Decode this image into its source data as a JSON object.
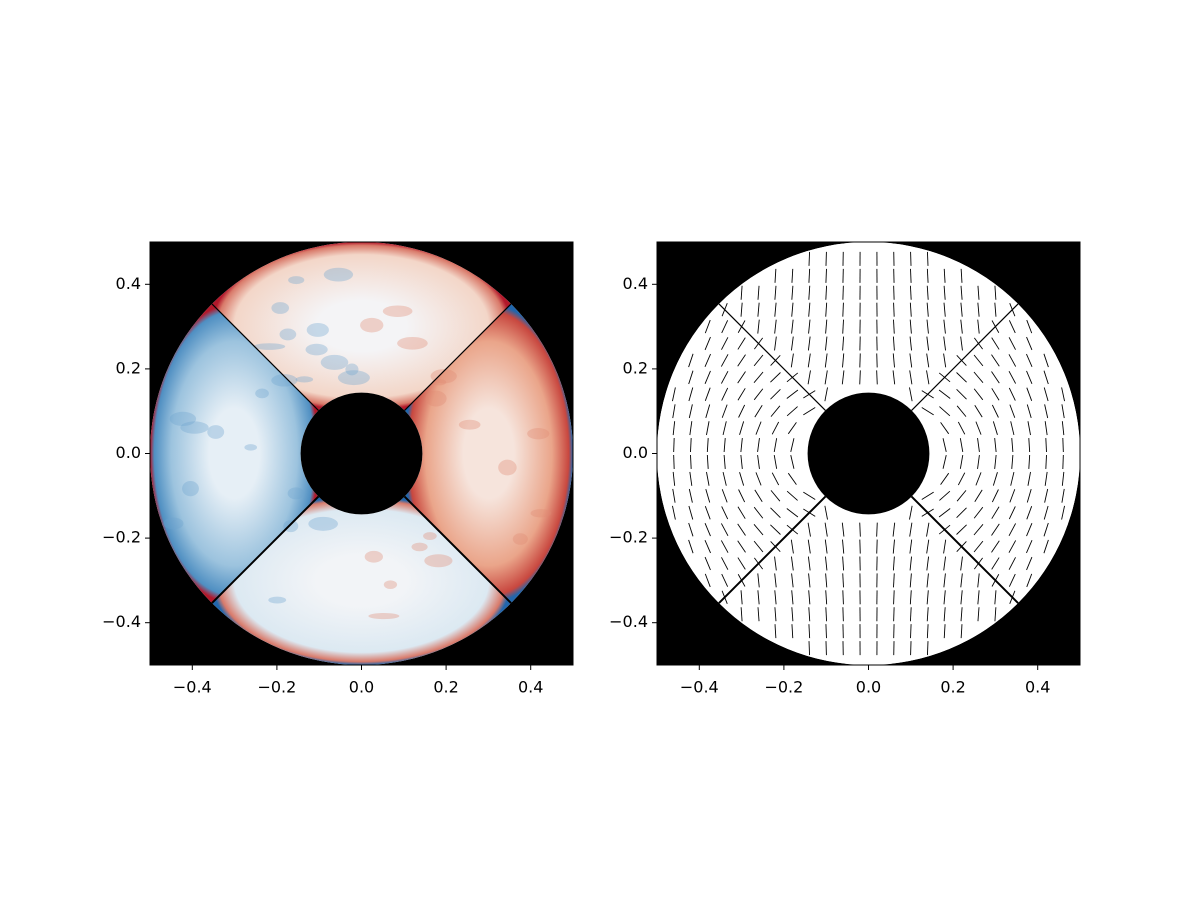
{
  "chart_data": [
    {
      "type": "image",
      "colormap": "RdBu_r",
      "xlim": [
        -0.5,
        0.5
      ],
      "ylim": [
        -0.5,
        0.5
      ],
      "xticks": [
        {
          "value": -0.4,
          "label": "−0.4"
        },
        {
          "value": -0.2,
          "label": "−0.2"
        },
        {
          "value": 0,
          "label": "0.0"
        },
        0.2,
        0.4
      ],
      "yticks": [
        {
          "value": -0.4,
          "label": "−0.4"
        },
        {
          "value": -0.2,
          "label": "−0.2"
        },
        {
          "value": 0,
          "label": "0.0"
        },
        0.2,
        0.4
      ]
    },
    {
      "type": "quiver",
      "xlim": [
        -0.5,
        0.5
      ],
      "ylim": [
        -0.5,
        0.5
      ],
      "xticks": [
        {
          "value": -0.4,
          "label": "−0.4"
        },
        {
          "value": -0.2,
          "label": "−0.2"
        },
        {
          "value": 0,
          "label": "0.0"
        },
        0.2,
        0.4
      ],
      "yticks": [
        {
          "value": -0.4,
          "label": "−0.4"
        },
        {
          "value": -0.2,
          "label": "−0.2"
        },
        {
          "value": 0,
          "label": "0.0"
        },
        0.2,
        0.4
      ]
    }
  ]
}
